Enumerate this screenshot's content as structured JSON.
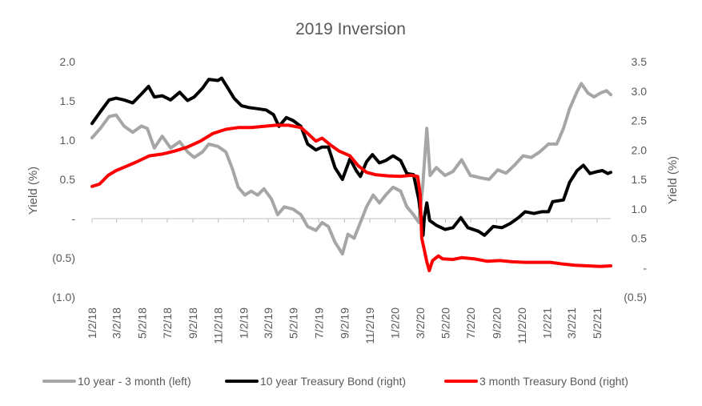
{
  "chart_data": {
    "type": "line",
    "title": "2019 Inversion",
    "ylabel_left": "Yield (%)",
    "ylabel_right": "Yield (%)",
    "ylim_left": [
      -1.0,
      2.0
    ],
    "ylim_right": [
      -0.5,
      3.5
    ],
    "y_ticks_left": [
      "2.0",
      "1.5",
      "1.0",
      "0.5",
      "-",
      "(0.5)",
      "(1.0)"
    ],
    "y_ticks_right": [
      "3.5",
      "3.0",
      "2.5",
      "2.0",
      "1.5",
      "1.0",
      "0.5",
      "-",
      "(0.5)"
    ],
    "x_ticks": [
      "1/2/18",
      "3/2/18",
      "5/2/18",
      "7/2/18",
      "9/2/18",
      "11/2/18",
      "1/2/19",
      "3/2/19",
      "5/2/19",
      "7/2/19",
      "9/2/19",
      "11/2/19",
      "1/2/20",
      "3/2/20",
      "5/2/20",
      "7/2/20",
      "9/2/20",
      "11/2/20",
      "1/2/21",
      "3/2/21",
      "5/2/21"
    ],
    "legend_position": "bottom",
    "grid": false,
    "series": [
      {
        "name": "10 year - 3 month (left)",
        "axis": "left",
        "color": "#a6a6a6",
        "points": [
          [
            "2018-01-02",
            1.03
          ],
          [
            "2018-01-22",
            1.15
          ],
          [
            "2018-02-12",
            1.3
          ],
          [
            "2018-03-01",
            1.32
          ],
          [
            "2018-03-20",
            1.18
          ],
          [
            "2018-04-10",
            1.1
          ],
          [
            "2018-05-01",
            1.18
          ],
          [
            "2018-05-15",
            1.15
          ],
          [
            "2018-06-01",
            0.9
          ],
          [
            "2018-06-20",
            1.05
          ],
          [
            "2018-07-10",
            0.9
          ],
          [
            "2018-08-01",
            0.98
          ],
          [
            "2018-08-20",
            0.85
          ],
          [
            "2018-09-05",
            0.78
          ],
          [
            "2018-09-25",
            0.85
          ],
          [
            "2018-10-10",
            0.95
          ],
          [
            "2018-11-01",
            0.92
          ],
          [
            "2018-11-20",
            0.85
          ],
          [
            "2018-12-05",
            0.65
          ],
          [
            "2018-12-20",
            0.4
          ],
          [
            "2019-01-05",
            0.3
          ],
          [
            "2019-01-20",
            0.35
          ],
          [
            "2019-02-05",
            0.3
          ],
          [
            "2019-02-20",
            0.38
          ],
          [
            "2019-03-10",
            0.25
          ],
          [
            "2019-03-25",
            0.05
          ],
          [
            "2019-04-10",
            0.15
          ],
          [
            "2019-05-01",
            0.12
          ],
          [
            "2019-05-20",
            0.05
          ],
          [
            "2019-06-05",
            -0.1
          ],
          [
            "2019-06-25",
            -0.15
          ],
          [
            "2019-07-10",
            -0.05
          ],
          [
            "2019-07-25",
            -0.1
          ],
          [
            "2019-08-10",
            -0.3
          ],
          [
            "2019-08-28",
            -0.45
          ],
          [
            "2019-09-10",
            -0.2
          ],
          [
            "2019-09-25",
            -0.25
          ],
          [
            "2019-10-10",
            -0.05
          ],
          [
            "2019-10-25",
            0.15
          ],
          [
            "2019-11-10",
            0.3
          ],
          [
            "2019-11-25",
            0.2
          ],
          [
            "2019-12-10",
            0.3
          ],
          [
            "2019-12-28",
            0.4
          ],
          [
            "2020-01-15",
            0.35
          ],
          [
            "2020-01-30",
            0.15
          ],
          [
            "2020-02-15",
            0.05
          ],
          [
            "2020-02-28",
            -0.05
          ],
          [
            "2020-03-08",
            0.4
          ],
          [
            "2020-03-18",
            1.15
          ],
          [
            "2020-03-26",
            0.55
          ],
          [
            "2020-04-10",
            0.65
          ],
          [
            "2020-05-01",
            0.55
          ],
          [
            "2020-05-20",
            0.6
          ],
          [
            "2020-06-10",
            0.75
          ],
          [
            "2020-07-01",
            0.55
          ],
          [
            "2020-07-25",
            0.52
          ],
          [
            "2020-08-15",
            0.5
          ],
          [
            "2020-09-05",
            0.62
          ],
          [
            "2020-09-25",
            0.58
          ],
          [
            "2020-10-15",
            0.68
          ],
          [
            "2020-11-05",
            0.8
          ],
          [
            "2020-11-25",
            0.78
          ],
          [
            "2020-12-15",
            0.85
          ],
          [
            "2021-01-05",
            0.95
          ],
          [
            "2021-01-25",
            0.95
          ],
          [
            "2021-02-10",
            1.15
          ],
          [
            "2021-02-25",
            1.4
          ],
          [
            "2021-03-15",
            1.62
          ],
          [
            "2021-03-25",
            1.72
          ],
          [
            "2021-04-10",
            1.6
          ],
          [
            "2021-04-25",
            1.55
          ],
          [
            "2021-05-10",
            1.6
          ],
          [
            "2021-05-25",
            1.63
          ],
          [
            "2021-06-04",
            1.58
          ]
        ]
      },
      {
        "name": "10 year Treasury Bond (right)",
        "axis": "right",
        "color": "#000000",
        "points": [
          [
            "2018-01-02",
            2.45
          ],
          [
            "2018-01-22",
            2.65
          ],
          [
            "2018-02-12",
            2.85
          ],
          [
            "2018-03-01",
            2.88
          ],
          [
            "2018-03-20",
            2.85
          ],
          [
            "2018-04-10",
            2.8
          ],
          [
            "2018-05-01",
            2.95
          ],
          [
            "2018-05-18",
            3.08
          ],
          [
            "2018-06-01",
            2.9
          ],
          [
            "2018-06-20",
            2.92
          ],
          [
            "2018-07-10",
            2.85
          ],
          [
            "2018-08-01",
            2.98
          ],
          [
            "2018-08-20",
            2.84
          ],
          [
            "2018-09-05",
            2.9
          ],
          [
            "2018-09-25",
            3.05
          ],
          [
            "2018-10-10",
            3.2
          ],
          [
            "2018-11-01",
            3.18
          ],
          [
            "2018-11-10",
            3.22
          ],
          [
            "2018-11-25",
            3.05
          ],
          [
            "2018-12-10",
            2.88
          ],
          [
            "2018-12-28",
            2.75
          ],
          [
            "2019-01-15",
            2.72
          ],
          [
            "2019-02-05",
            2.7
          ],
          [
            "2019-02-25",
            2.68
          ],
          [
            "2019-03-15",
            2.6
          ],
          [
            "2019-03-28",
            2.4
          ],
          [
            "2019-04-15",
            2.55
          ],
          [
            "2019-05-01",
            2.5
          ],
          [
            "2019-05-20",
            2.4
          ],
          [
            "2019-06-05",
            2.1
          ],
          [
            "2019-06-25",
            2.0
          ],
          [
            "2019-07-10",
            2.05
          ],
          [
            "2019-07-25",
            2.05
          ],
          [
            "2019-08-10",
            1.7
          ],
          [
            "2019-08-28",
            1.5
          ],
          [
            "2019-09-15",
            1.85
          ],
          [
            "2019-09-30",
            1.65
          ],
          [
            "2019-10-10",
            1.55
          ],
          [
            "2019-10-25",
            1.8
          ],
          [
            "2019-11-08",
            1.92
          ],
          [
            "2019-11-25",
            1.78
          ],
          [
            "2019-12-10",
            1.82
          ],
          [
            "2019-12-28",
            1.9
          ],
          [
            "2020-01-15",
            1.82
          ],
          [
            "2020-01-30",
            1.6
          ],
          [
            "2020-02-15",
            1.58
          ],
          [
            "2020-02-28",
            1.15
          ],
          [
            "2020-03-05",
            0.8
          ],
          [
            "2020-03-09",
            0.55
          ],
          [
            "2020-03-12",
            0.85
          ],
          [
            "2020-03-18",
            1.1
          ],
          [
            "2020-03-25",
            0.8
          ],
          [
            "2020-04-10",
            0.72
          ],
          [
            "2020-05-01",
            0.65
          ],
          [
            "2020-05-20",
            0.68
          ],
          [
            "2020-06-08",
            0.85
          ],
          [
            "2020-06-25",
            0.68
          ],
          [
            "2020-07-20",
            0.62
          ],
          [
            "2020-08-04",
            0.55
          ],
          [
            "2020-08-25",
            0.7
          ],
          [
            "2020-09-15",
            0.68
          ],
          [
            "2020-10-05",
            0.75
          ],
          [
            "2020-10-25",
            0.85
          ],
          [
            "2020-11-10",
            0.95
          ],
          [
            "2020-12-01",
            0.92
          ],
          [
            "2020-12-20",
            0.95
          ],
          [
            "2021-01-05",
            0.95
          ],
          [
            "2021-01-15",
            1.12
          ],
          [
            "2021-02-10",
            1.15
          ],
          [
            "2021-02-25",
            1.45
          ],
          [
            "2021-03-15",
            1.65
          ],
          [
            "2021-03-30",
            1.74
          ],
          [
            "2021-04-15",
            1.6
          ],
          [
            "2021-05-01",
            1.63
          ],
          [
            "2021-05-15",
            1.65
          ],
          [
            "2021-05-28",
            1.6
          ],
          [
            "2021-06-04",
            1.62
          ]
        ]
      },
      {
        "name": "3 month Treasury Bond (right)",
        "axis": "right",
        "color": "#ff0000",
        "points": [
          [
            "2018-01-02",
            1.38
          ],
          [
            "2018-01-20",
            1.42
          ],
          [
            "2018-02-10",
            1.57
          ],
          [
            "2018-03-01",
            1.65
          ],
          [
            "2018-03-25",
            1.72
          ],
          [
            "2018-04-20",
            1.8
          ],
          [
            "2018-05-20",
            1.9
          ],
          [
            "2018-06-20",
            1.93
          ],
          [
            "2018-07-20",
            1.98
          ],
          [
            "2018-08-20",
            2.05
          ],
          [
            "2018-09-20",
            2.15
          ],
          [
            "2018-10-20",
            2.28
          ],
          [
            "2018-11-20",
            2.35
          ],
          [
            "2018-12-20",
            2.38
          ],
          [
            "2019-01-20",
            2.38
          ],
          [
            "2019-02-20",
            2.4
          ],
          [
            "2019-03-20",
            2.42
          ],
          [
            "2019-04-20",
            2.42
          ],
          [
            "2019-05-20",
            2.38
          ],
          [
            "2019-06-10",
            2.25
          ],
          [
            "2019-06-25",
            2.15
          ],
          [
            "2019-07-10",
            2.2
          ],
          [
            "2019-07-31",
            2.08
          ],
          [
            "2019-08-20",
            1.98
          ],
          [
            "2019-09-15",
            1.9
          ],
          [
            "2019-10-05",
            1.73
          ],
          [
            "2019-10-25",
            1.62
          ],
          [
            "2019-11-15",
            1.58
          ],
          [
            "2019-12-15",
            1.56
          ],
          [
            "2020-01-15",
            1.55
          ],
          [
            "2020-02-10",
            1.57
          ],
          [
            "2020-02-25",
            1.55
          ],
          [
            "2020-03-02",
            1.25
          ],
          [
            "2020-03-06",
            0.5
          ],
          [
            "2020-03-12",
            0.3
          ],
          [
            "2020-03-18",
            0.1
          ],
          [
            "2020-03-24",
            -0.05
          ],
          [
            "2020-04-01",
            0.12
          ],
          [
            "2020-04-15",
            0.2
          ],
          [
            "2020-04-25",
            0.15
          ],
          [
            "2020-05-20",
            0.14
          ],
          [
            "2020-06-10",
            0.17
          ],
          [
            "2020-07-10",
            0.15
          ],
          [
            "2020-08-10",
            0.11
          ],
          [
            "2020-09-10",
            0.12
          ],
          [
            "2020-10-10",
            0.1
          ],
          [
            "2020-11-10",
            0.09
          ],
          [
            "2020-12-10",
            0.09
          ],
          [
            "2021-01-10",
            0.09
          ],
          [
            "2021-02-10",
            0.06
          ],
          [
            "2021-03-10",
            0.04
          ],
          [
            "2021-04-10",
            0.03
          ],
          [
            "2021-05-10",
            0.02
          ],
          [
            "2021-06-04",
            0.03
          ]
        ]
      }
    ]
  }
}
